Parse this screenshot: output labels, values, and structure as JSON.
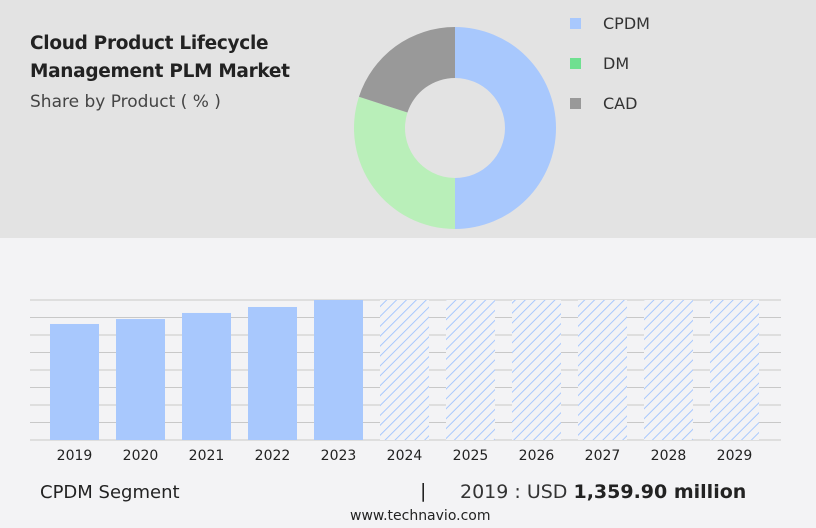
{
  "title_line1": "Cloud Product Lifecycle",
  "title_line2": "Management PLM Market",
  "subtitle": "Share by Product ( % )",
  "chart_data": [
    {
      "type": "pie",
      "donut": true,
      "categories": [
        "CPDM",
        "DM",
        "CAD"
      ],
      "values": [
        50,
        30,
        20
      ],
      "colors": [
        "#a8c8fd",
        "#b9efb9",
        "#999999"
      ],
      "legend_colors": [
        "#a8c8fd",
        "#6fe090",
        "#999999"
      ],
      "legend": "right"
    },
    {
      "type": "bar",
      "categories": [
        "2019",
        "2020",
        "2021",
        "2022",
        "2023",
        "2024",
        "2025",
        "2026",
        "2027",
        "2028",
        "2029"
      ],
      "values": [
        1359.9,
        1418,
        1489,
        1559,
        1641,
        null,
        null,
        null,
        null,
        null,
        null
      ],
      "forecast": [
        false,
        false,
        false,
        false,
        false,
        true,
        true,
        true,
        true,
        true,
        true
      ],
      "color": "#a8c8fd",
      "ylim": [
        0,
        1641
      ],
      "grid": true,
      "y_tick_labels": false
    }
  ],
  "footer": {
    "segment": "CPDM Segment",
    "separator": "|",
    "year_label": "2019 : USD",
    "value": "1,359.90 million",
    "site": "www.technavio.com"
  }
}
